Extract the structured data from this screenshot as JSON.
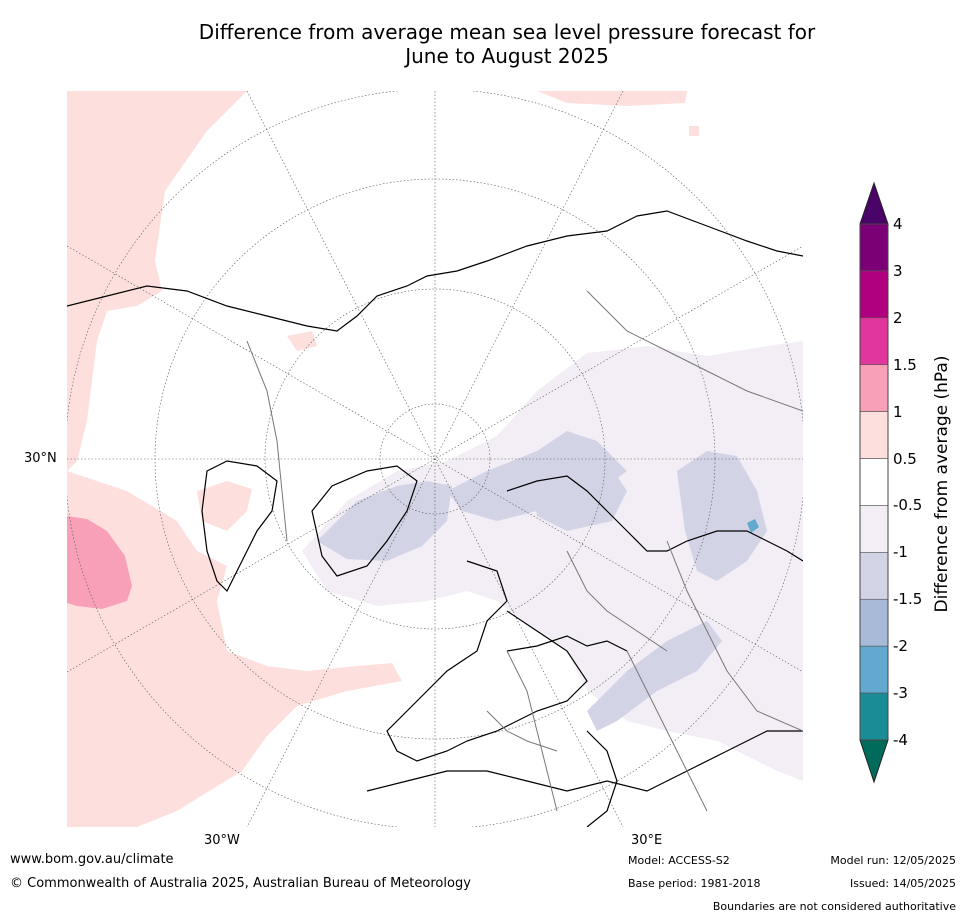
{
  "title": {
    "line1": "Difference from average mean sea level pressure forecast for",
    "line2": "June to August 2025"
  },
  "map": {
    "projection": "north-polar-stereographic",
    "lat_label": "30°N",
    "lon_labels": [
      "30°W",
      "30°E"
    ],
    "anomaly_regions": [
      {
        "area": "North Atlantic / western Atlantic",
        "class": "0.5 to 1"
      },
      {
        "area": "Mid-Atlantic patch west of Africa",
        "class": "1 to 1.5"
      },
      {
        "area": "Far north Pacific edge",
        "class": "0.5 to 1"
      },
      {
        "area": "Greenland and Arctic",
        "class": "-1 to -1.5"
      },
      {
        "area": "Northern Russia / Siberia",
        "class": "-1 to -1.5"
      },
      {
        "area": "Central Asia",
        "class": "-1 to -1.5"
      },
      {
        "area": "Black Sea / Turkey / Middle East",
        "class": "-1 to -1.5"
      },
      {
        "area": "Spot near Mongolia",
        "class": "-2 to -3"
      }
    ]
  },
  "colorbar": {
    "label": "Difference from average (hPa)",
    "ticks": [
      "4",
      "3",
      "2",
      "1.5",
      "1",
      "0.5",
      "-0.5",
      "-1",
      "-1.5",
      "-2",
      "-3",
      "-4"
    ],
    "colors_top_to_bottom": [
      "#7b0076",
      "#b0007f",
      "#e0369e",
      "#f8a0b8",
      "#fde0de",
      "#ffffff",
      "#f3eef5",
      "#d3d3e6",
      "#a8bad7",
      "#63a8cf",
      "#1a8c96"
    ],
    "over_color": "#4a0368",
    "under_color": "#006b5b"
  },
  "footer": {
    "website": "www.bom.gov.au/climate",
    "copyright": "© Commonwealth of Australia 2025, Australian Bureau of Meteorology",
    "model": "Model: ACCESS-S2",
    "base_period": "Base period: 1981-2018",
    "model_run": "Model run: 12/05/2025",
    "issued": "Issued: 14/05/2025",
    "disclaimer": "Boundaries are not considered authoritative"
  }
}
